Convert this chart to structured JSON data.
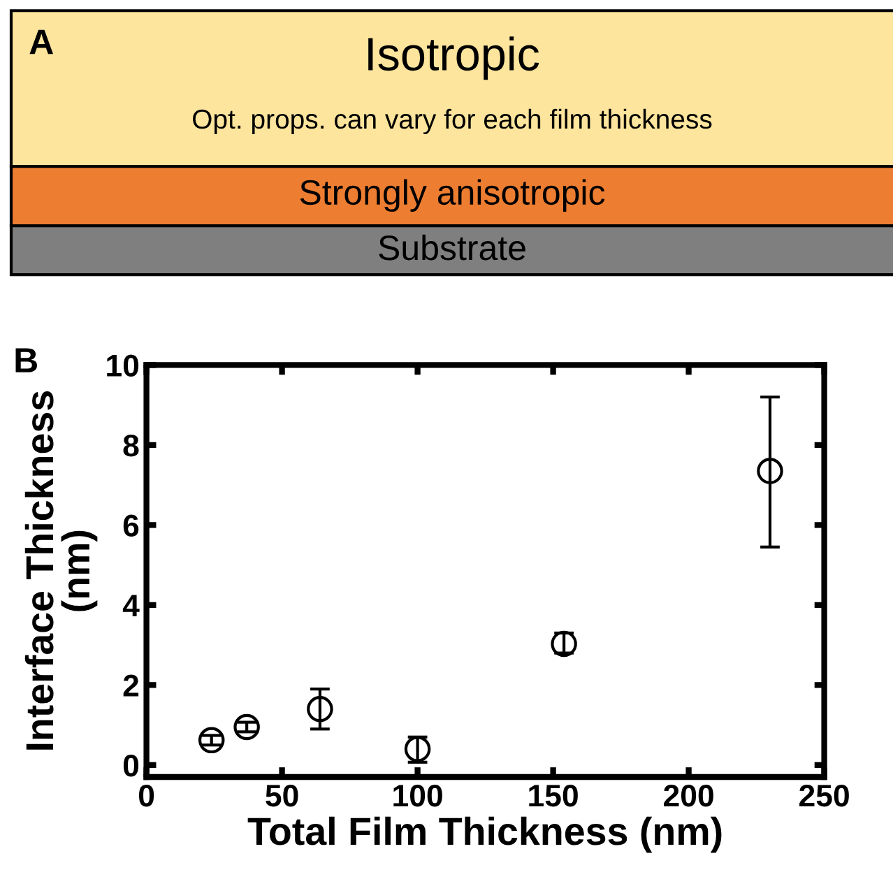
{
  "chart_data": [
    {
      "type": "other",
      "annotations": [
        "A",
        "Isotropic",
        "Opt. props. can vary for each film thickness",
        "Strongly anisotropic",
        "Substrate"
      ]
    },
    {
      "type": "scatter",
      "xlabel": "Total Film Thickness (nm)",
      "ylabel": "Interface Thickness\n(nm)",
      "annotations": [
        "B"
      ],
      "x": [
        24,
        37,
        64,
        100,
        154,
        230
      ],
      "values": [
        0.62,
        0.95,
        1.4,
        0.4,
        3.03,
        7.35
      ],
      "errors": [
        [
          0.5,
          0.74
        ],
        [
          0.83,
          1.07
        ],
        [
          0.9,
          1.9
        ],
        [
          0.07,
          0.7
        ],
        [
          2.8,
          3.3
        ],
        [
          5.45,
          9.2
        ]
      ],
      "color": "#000000",
      "marker": "circle",
      "xlim": [
        0,
        250
      ],
      "xticks": [
        0,
        50,
        100,
        150,
        200,
        250
      ],
      "ylim": [
        -0.3,
        10
      ],
      "yticks": [
        0,
        2,
        4,
        6,
        8,
        10
      ],
      "grid": false
    }
  ]
}
